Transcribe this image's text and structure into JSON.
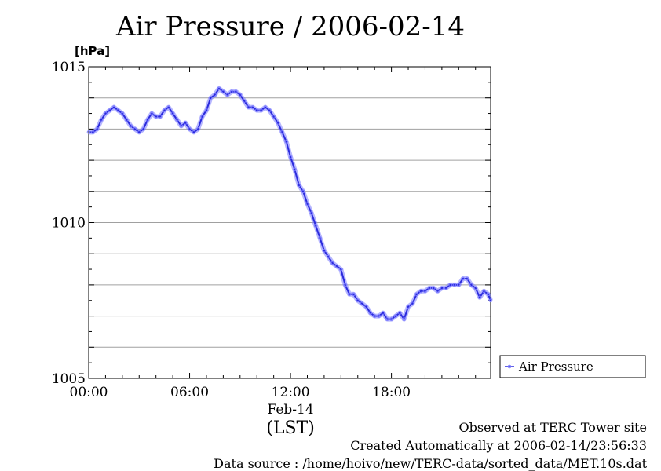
{
  "chart_data": {
    "type": "line",
    "title": "Air Pressure / 2006-02-14",
    "ylabel": "[hPa]",
    "xlabel": "(LST)",
    "date_label": "Feb-14",
    "ylim": [
      1005,
      1015
    ],
    "xlim": [
      0,
      23.9
    ],
    "yticks": [
      1005,
      1010,
      1015
    ],
    "xticks": [
      {
        "value": 0,
        "label": "00:00"
      },
      {
        "value": 6,
        "label": "06:00"
      },
      {
        "value": 12,
        "label": "12:00"
      },
      {
        "value": 18,
        "label": "18:00"
      }
    ],
    "grid": true,
    "legend": "outside-right",
    "series": [
      {
        "name": "Air Pressure",
        "color": "#2b2bdd",
        "marker_color": "#7a7aff",
        "x": [
          0.0,
          0.25,
          0.5,
          0.75,
          1.0,
          1.25,
          1.5,
          1.75,
          2.0,
          2.25,
          2.5,
          2.75,
          3.0,
          3.25,
          3.5,
          3.75,
          4.0,
          4.25,
          4.5,
          4.75,
          5.0,
          5.25,
          5.5,
          5.75,
          6.0,
          6.25,
          6.5,
          6.75,
          7.0,
          7.25,
          7.5,
          7.75,
          8.0,
          8.25,
          8.5,
          8.75,
          9.0,
          9.25,
          9.5,
          9.75,
          10.0,
          10.25,
          10.5,
          10.75,
          11.0,
          11.25,
          11.5,
          11.75,
          12.0,
          12.25,
          12.5,
          12.75,
          13.0,
          13.25,
          13.5,
          13.75,
          14.0,
          14.25,
          14.5,
          14.75,
          15.0,
          15.25,
          15.5,
          15.75,
          16.0,
          16.25,
          16.5,
          16.75,
          17.0,
          17.25,
          17.5,
          17.75,
          18.0,
          18.25,
          18.5,
          18.75,
          19.0,
          19.25,
          19.5,
          19.75,
          20.0,
          20.25,
          20.5,
          20.75,
          21.0,
          21.25,
          21.5,
          21.75,
          22.0,
          22.25,
          22.5,
          22.75,
          23.0,
          23.25,
          23.5,
          23.75,
          23.9
        ],
        "y": [
          1012.9,
          1012.9,
          1013.0,
          1013.3,
          1013.5,
          1013.6,
          1013.7,
          1013.6,
          1013.5,
          1013.3,
          1013.1,
          1013.0,
          1012.9,
          1013.0,
          1013.3,
          1013.5,
          1013.4,
          1013.4,
          1013.6,
          1013.7,
          1013.5,
          1013.3,
          1013.1,
          1013.2,
          1013.0,
          1012.9,
          1013.0,
          1013.4,
          1013.6,
          1014.0,
          1014.1,
          1014.3,
          1014.2,
          1014.1,
          1014.2,
          1014.2,
          1014.1,
          1013.9,
          1013.7,
          1013.7,
          1013.6,
          1013.6,
          1013.7,
          1013.6,
          1013.4,
          1013.2,
          1012.9,
          1012.6,
          1012.1,
          1011.7,
          1011.2,
          1011.0,
          1010.6,
          1010.3,
          1009.9,
          1009.5,
          1009.1,
          1008.9,
          1008.7,
          1008.6,
          1008.5,
          1008.0,
          1007.7,
          1007.7,
          1007.5,
          1007.4,
          1007.3,
          1007.1,
          1007.0,
          1007.0,
          1007.1,
          1006.9,
          1006.9,
          1007.0,
          1007.1,
          1006.9,
          1007.3,
          1007.4,
          1007.7,
          1007.8,
          1007.8,
          1007.9,
          1007.9,
          1007.8,
          1007.9,
          1007.9,
          1008.0,
          1008.0,
          1008.0,
          1008.2,
          1008.2,
          1008.0,
          1007.9,
          1007.6,
          1007.8,
          1007.7,
          1007.5
        ]
      }
    ]
  },
  "footer": {
    "observed": "Observed at TERC Tower site",
    "created": "Created Automatically at 2006-02-14/23:56:33",
    "source": "Data source : /home/hoivo/new/TERC-data/sorted_data/MET.10s.dat"
  }
}
